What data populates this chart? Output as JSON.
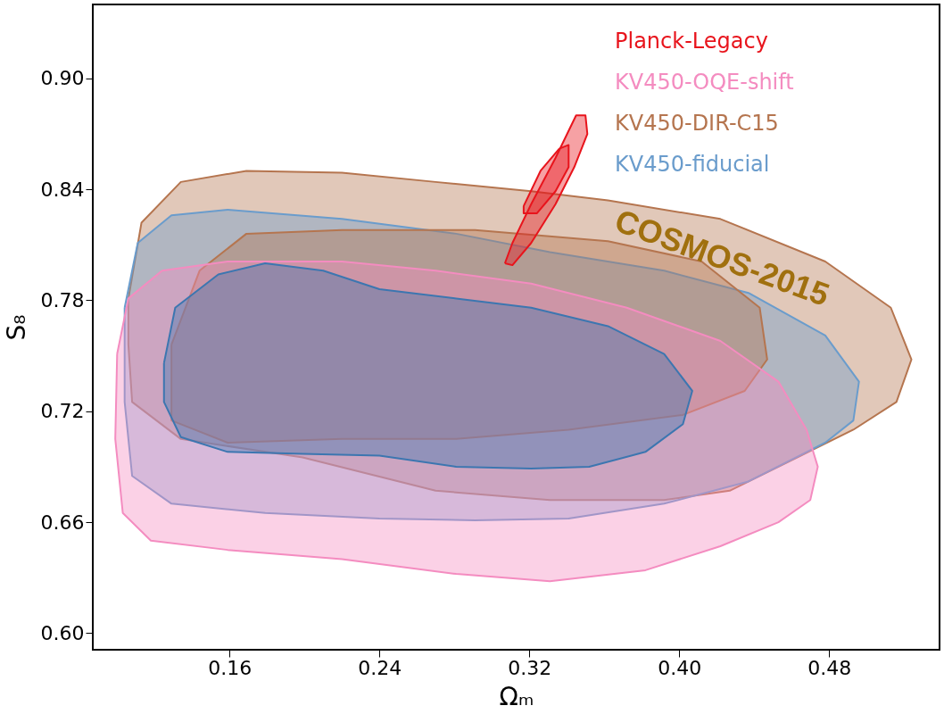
{
  "chart_data": {
    "type": "area",
    "xlabel": "Ωₘ",
    "ylabel": "S₈",
    "xlim": [
      0.087,
      0.539
    ],
    "ylim": [
      0.591,
      0.94
    ],
    "xticks": [
      0.16,
      0.24,
      0.32,
      {
        "value": 0.4,
        "label": "0.40"
      },
      0.48
    ],
    "yticks": [
      {
        "value": 0.6,
        "label": "0.60"
      },
      0.66,
      0.72,
      0.78,
      0.84,
      {
        "value": 0.9,
        "label": "0.90"
      }
    ],
    "grid": false,
    "legend": "top right",
    "marker": "none",
    "line_style": "solid",
    "annotations": [
      "COSMOS-2015"
    ],
    "series": [
      {
        "color": "#b5754f",
        "x": [
          0.106,
          0.113,
          0.134,
          0.169,
          0.22,
          0.27,
          0.321,
          0.362,
          0.422,
          0.478,
          0.513,
          0.524,
          0.516,
          0.493,
          0.463,
          0.427,
          0.392,
          0.331,
          0.27,
          0.199,
          0.134,
          0.108,
          0.106,
          0.106
        ],
        "values": [
          0.781,
          0.822,
          0.844,
          0.85,
          0.849,
          0.844,
          0.839,
          0.834,
          0.824,
          0.801,
          0.776,
          0.748,
          0.725,
          0.71,
          0.695,
          0.677,
          0.672,
          0.672,
          0.677,
          0.695,
          0.705,
          0.725,
          0.756,
          0.781
        ]
      },
      {
        "name": "KV450-fiducial",
        "color": "#6a9ccc",
        "x": [
          0.104,
          0.111,
          0.129,
          0.159,
          0.22,
          0.281,
          0.331,
          0.392,
          0.437,
          0.478,
          0.496,
          0.493,
          0.478,
          0.437,
          0.392,
          0.341,
          0.291,
          0.24,
          0.179,
          0.129,
          0.108,
          0.104,
          0.104
        ],
        "values": [
          0.776,
          0.811,
          0.826,
          0.829,
          0.824,
          0.816,
          0.806,
          0.796,
          0.784,
          0.761,
          0.736,
          0.715,
          0.703,
          0.682,
          0.67,
          0.662,
          0.661,
          0.662,
          0.665,
          0.67,
          0.685,
          0.725,
          0.776
        ]
      },
      {
        "name": "KV450-DIR-C15",
        "color": "#b5754f",
        "x": [
          0.129,
          0.144,
          0.169,
          0.22,
          0.291,
          0.362,
          0.412,
          0.443,
          0.447,
          0.435,
          0.402,
          0.341,
          0.281,
          0.22,
          0.159,
          0.129,
          0.129
        ],
        "values": [
          0.756,
          0.796,
          0.816,
          0.818,
          0.818,
          0.812,
          0.801,
          0.776,
          0.748,
          0.731,
          0.718,
          0.71,
          0.705,
          0.705,
          0.703,
          0.715,
          0.756
        ]
      },
      {
        "name": "KV450-OQE-shift",
        "color": "#f48cc0",
        "x": [
          0.1,
          0.106,
          0.124,
          0.159,
          0.22,
          0.27,
          0.321,
          0.372,
          0.422,
          0.453,
          0.468,
          0.474,
          0.47,
          0.453,
          0.422,
          0.382,
          0.331,
          0.281,
          0.22,
          0.159,
          0.118,
          0.103,
          0.099,
          0.1
        ],
        "values": [
          0.751,
          0.781,
          0.796,
          0.801,
          0.801,
          0.796,
          0.789,
          0.776,
          0.758,
          0.736,
          0.71,
          0.69,
          0.672,
          0.66,
          0.647,
          0.634,
          0.628,
          0.632,
          0.64,
          0.645,
          0.65,
          0.665,
          0.705,
          0.751
        ]
      },
      {
        "color": "#3c76b0",
        "x": [
          0.125,
          0.131,
          0.154,
          0.179,
          0.21,
          0.24,
          0.281,
          0.321,
          0.362,
          0.392,
          0.407,
          0.402,
          0.382,
          0.352,
          0.321,
          0.281,
          0.24,
          0.199,
          0.159,
          0.134,
          0.125,
          0.125
        ],
        "values": [
          0.746,
          0.776,
          0.794,
          0.8,
          0.796,
          0.786,
          0.781,
          0.776,
          0.766,
          0.751,
          0.731,
          0.713,
          0.698,
          0.69,
          0.689,
          0.69,
          0.696,
          0.697,
          0.698,
          0.706,
          0.725,
          0.746
        ]
      },
      {
        "name": "Planck-Legacy",
        "color": "#e8141c",
        "x": [
          0.307,
          0.311,
          0.321,
          0.334,
          0.345,
          0.35,
          0.351,
          0.344,
          0.334,
          0.321,
          0.311,
          0.307
        ],
        "values": [
          0.8,
          0.811,
          0.832,
          0.857,
          0.88,
          0.88,
          0.87,
          0.852,
          0.832,
          0.811,
          0.799,
          0.8
        ]
      },
      {
        "color": "#e8141c",
        "x": [
          0.317,
          0.326,
          0.336,
          0.341,
          0.341,
          0.334,
          0.324,
          0.317,
          0.317
        ],
        "values": [
          0.831,
          0.85,
          0.862,
          0.864,
          0.852,
          0.839,
          0.827,
          0.827,
          0.831
        ]
      }
    ]
  }
}
